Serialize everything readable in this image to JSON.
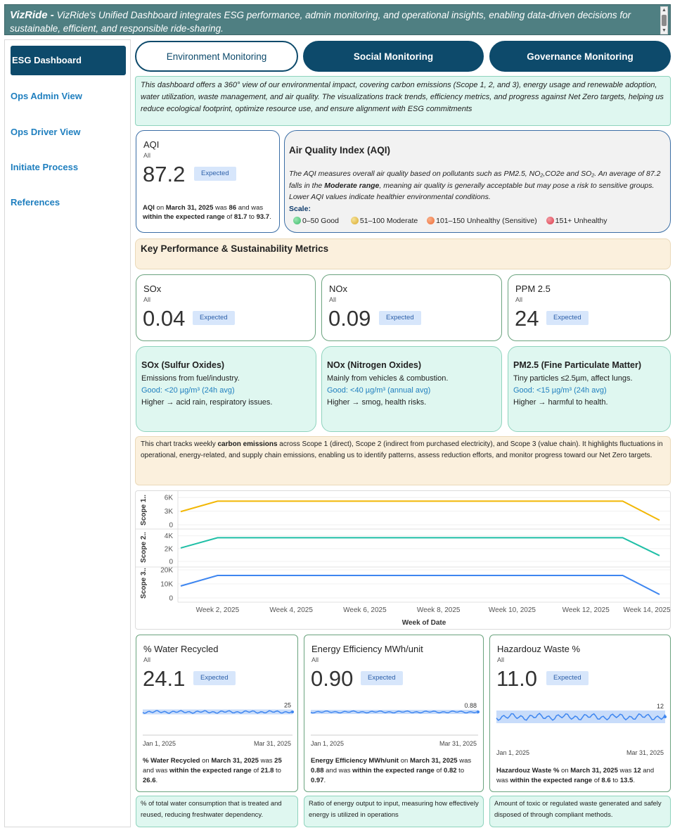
{
  "header": {
    "brand": "VizRide -",
    "description": "VizRide's Unified Dashboard integrates ESG performance, admin monitoring, and operational insights, enabling data-driven decisions for sustainable, efficient, and responsible ride-sharing."
  },
  "sidebar": {
    "items": [
      {
        "label": "ESG Dashboard",
        "active": true
      },
      {
        "label": "Ops Admin View"
      },
      {
        "label": "Ops Driver View"
      },
      {
        "label": "Initiate Process"
      },
      {
        "label": "References"
      }
    ]
  },
  "tabs": [
    {
      "label": "Environment Monitoring",
      "active": true
    },
    {
      "label": "Social Monitoring"
    },
    {
      "label": "Governance Monitoring"
    }
  ],
  "intro": "This dashboard offers a 360° view of our environmental impact, covering carbon emissions (Scope 1, 2, and 3), energy usage and renewable adoption, water utilization, waste management, and air quality. The visualizations track trends, efficiency metrics, and progress against Net Zero targets, helping us reduce ecological footprint, optimize resource use, and ensure alignment with ESG commitments",
  "aqi_card": {
    "title": "AQI",
    "sub": "All",
    "value": "87.2",
    "badge": "Expected",
    "summary": {
      "name": "AQI",
      "on": " on ",
      "date": "March 31, 2025",
      "was": " was ",
      "val": "86",
      "and": " and was ",
      "within": "within the expected range",
      "of": " of ",
      "low": "81.7",
      "to": " to ",
      "high": "93.7",
      "end": "."
    }
  },
  "aqi_panel": {
    "title": "Air Quality Index (AQI)",
    "desc1": "The AQI measures overall air quality based on pollutants such as PM2.5, NO₂,CO2e and SO₂. An average of 87.2 falls in the ",
    "desc_bold": "Moderate range",
    "desc2": ", meaning air quality is generally acceptable but may pose a risk to sensitive groups. Lower AQI values indicate healthier environmental conditions.",
    "scale_label": "Scale:",
    "scale": [
      {
        "label": "0–50 Good",
        "color": "#3dbb6b"
      },
      {
        "label": "51–100 Moderate",
        "color": "#e2b63a"
      },
      {
        "label": "101–150 Unhealthy (Sensitive)",
        "color": "#ef6b35"
      },
      {
        "label": "151+ Unhealthy",
        "color": "#dd3a4a"
      }
    ]
  },
  "kpi_section_title": "Key Performance & Sustainability Metrics",
  "pollutants": [
    {
      "title": "SOx",
      "sub": "All",
      "value": "0.04",
      "badge": "Expected"
    },
    {
      "title": "NOx",
      "sub": "All",
      "value": "0.09",
      "badge": "Expected"
    },
    {
      "title": "PPM 2.5",
      "sub": "All",
      "value": "24",
      "badge": "Expected"
    }
  ],
  "pollutant_info": [
    {
      "title": "SOx (Sulfur Oxides)",
      "l1": "Emissions from fuel/industry.",
      "good": "Good: <20 µg/m³ (24h avg)",
      "l3": "Higher → acid rain, respiratory issues."
    },
    {
      "title": "NOx (Nitrogen Oxides)",
      "l1": "Mainly from vehicles & combustion.",
      "good": "Good: <40 µg/m³ (annual avg)",
      "l3": "Higher → smog, health risks."
    },
    {
      "title": "PM2.5 (Fine Particulate Matter)",
      "l1": "Tiny particles ≤2.5µm, affect lungs.",
      "good": "Good: <15 µg/m³ (24h avg)",
      "l3": "Higher → harmful to health."
    }
  ],
  "carbon_desc": {
    "p1": "This chart tracks weekly ",
    "bold": "carbon emissions",
    "p2": " across Scope 1 (direct), Scope 2 (indirect from purchased electricity), and Scope 3 (value chain). It highlights fluctuations in operational, energy-related, and supply chain emissions, enabling us to identify patterns, assess reduction efforts, and monitor progress toward our Net Zero targets."
  },
  "chart_data": {
    "type": "line",
    "xlabel": "Week of Date",
    "x_ticks": [
      "Week 2, 2025",
      "Week 4, 2025",
      "Week 6, 2025",
      "Week 8, 2025",
      "Week 10, 2025",
      "Week 12, 2025",
      "Week 14, 2025"
    ],
    "weeks": [
      1,
      2,
      3,
      4,
      5,
      6,
      7,
      8,
      9,
      10,
      11,
      12,
      13,
      14
    ],
    "series": [
      {
        "name": "Scope 1..",
        "color": "#f2b705",
        "ylim": [
          0,
          6500
        ],
        "y_ticks": [
          {
            "v": 0,
            "label": "0"
          },
          {
            "v": 3000,
            "label": "3K"
          },
          {
            "v": 6000,
            "label": "6K"
          }
        ],
        "values": [
          2900,
          5200,
          5200,
          5200,
          5200,
          5200,
          5200,
          5200,
          5200,
          5200,
          5200,
          5200,
          5200,
          1000
        ]
      },
      {
        "name": "Scope 2..",
        "color": "#1fbfa6",
        "ylim": [
          0,
          4400
        ],
        "y_ticks": [
          {
            "v": 0,
            "label": "0"
          },
          {
            "v": 2000,
            "label": "2K"
          },
          {
            "v": 4000,
            "label": "4K"
          }
        ],
        "values": [
          2100,
          3700,
          3700,
          3700,
          3700,
          3700,
          3700,
          3700,
          3700,
          3700,
          3700,
          3700,
          3700,
          900
        ]
      },
      {
        "name": "Scope 3..",
        "color": "#3e86f0",
        "ylim": [
          0,
          21000
        ],
        "y_ticks": [
          {
            "v": 0,
            "label": "0"
          },
          {
            "v": 10000,
            "label": "10K"
          },
          {
            "v": 20000,
            "label": "20K"
          }
        ],
        "values": [
          8500,
          16000,
          16000,
          16000,
          16000,
          16000,
          16000,
          16000,
          16000,
          16000,
          16000,
          16000,
          16000,
          2500
        ]
      }
    ]
  },
  "metrics": [
    {
      "title": "% Water Recycled",
      "sub": "All",
      "value": "24.1",
      "badge": "Expected",
      "last": "25",
      "start": "Jan 1, 2025",
      "end": "Mar 31, 2025",
      "s_name": "% Water Recycled",
      "s_date": "March 31, 2025",
      "s_val": "25",
      "s_low": "21.8",
      "s_high": "26.6",
      "desc": "% of total water consumption that is treated and reused, reducing freshwater dependency."
    },
    {
      "title": "Energy Efficiency MWh/unit",
      "sub": "All",
      "value": "0.90",
      "badge": "Expected",
      "last": "0.88",
      "start": "Jan 1, 2025",
      "end": "Mar 31, 2025",
      "s_name": "Energy Efficiency MWh/unit",
      "s_date": "March 31, 2025",
      "s_val": "0.88",
      "s_low": "0.82",
      "s_high": "0.97",
      "desc": "Ratio of energy output to input, measuring how effectively energy is utilized in operations"
    },
    {
      "title": "Hazardouz Waste %",
      "sub": "All",
      "value": "11.0",
      "badge": "Expected",
      "last": "12",
      "start": "Jan 1, 2025",
      "end": "Mar 31, 2025",
      "s_name": "Hazardouz Waste %",
      "s_date": "March 31, 2025",
      "s_val": "12",
      "s_low": "8.6",
      "s_high": "13.5",
      "desc": "Amount of toxic or regulated waste generated and safely disposed of through compliant methods."
    }
  ],
  "summary_words": {
    "on": " on ",
    "was": " was ",
    "and": " and was ",
    "within": "within the expected range",
    "of": " of ",
    "to": " to ",
    "end": "."
  }
}
